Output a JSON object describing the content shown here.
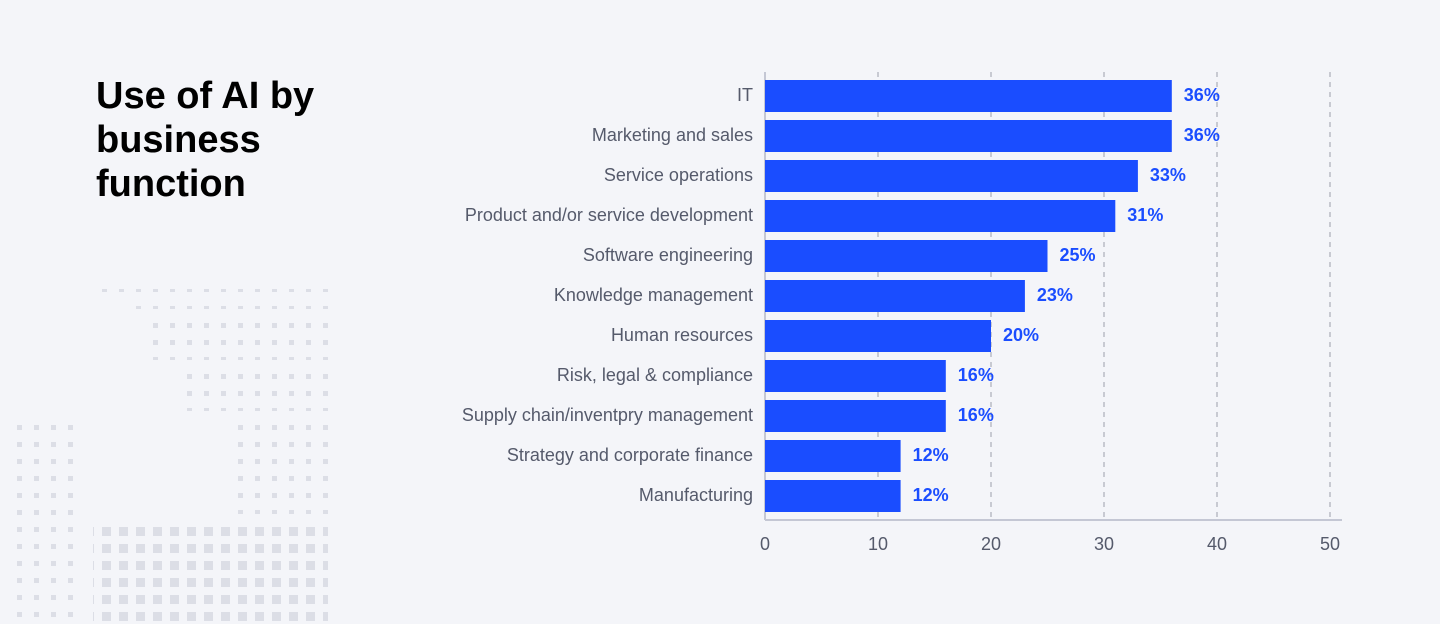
{
  "chart_data": {
    "type": "bar",
    "orientation": "horizontal",
    "title": "Use of AI by business function",
    "categories": [
      "IT",
      "Marketing and sales",
      "Service operations",
      "Product and/or service development",
      "Software engineering",
      "Knowledge management",
      "Human resources",
      "Risk, legal & compliance",
      "Supply chain/inventpry management",
      "Strategy and corporate finance",
      "Manufacturing"
    ],
    "values": [
      36,
      36,
      33,
      31,
      25,
      23,
      20,
      16,
      16,
      12,
      12
    ],
    "value_labels": [
      "36%",
      "36%",
      "33%",
      "31%",
      "25%",
      "23%",
      "20%",
      "16%",
      "16%",
      "12%",
      "12%"
    ],
    "color": "#1a4dff",
    "xlim": [
      0,
      50
    ],
    "xticks": [
      0,
      10,
      20,
      30,
      40,
      50
    ],
    "grid": true
  }
}
